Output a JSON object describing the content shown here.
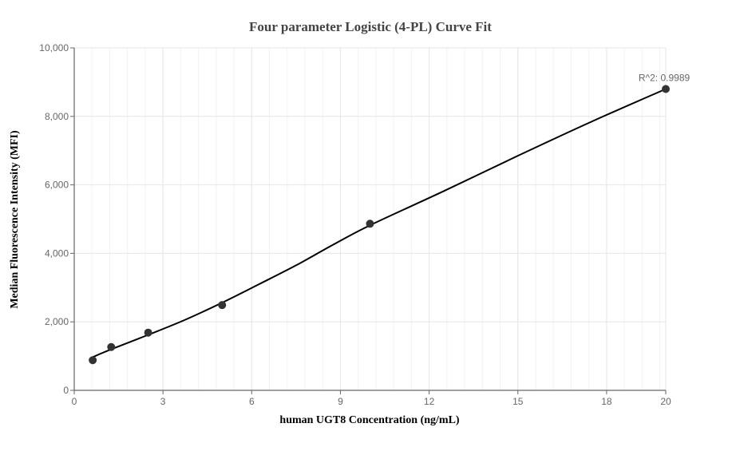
{
  "chart_data": {
    "type": "scatter",
    "title": "Four parameter Logistic (4-PL) Curve Fit",
    "xlabel": "human UGT8 Concentration (ng/mL)",
    "ylabel": "Median Fluorescence Intensity (MFI)",
    "xlim": [
      0,
      20
    ],
    "ylim": [
      0,
      10000
    ],
    "x_ticks": [
      0,
      3,
      6,
      9,
      12,
      15,
      18,
      20
    ],
    "x_tick_labels": [
      "0",
      "3",
      "6",
      "9",
      "12",
      "15",
      "18",
      "20"
    ],
    "y_ticks": [
      0,
      2000,
      4000,
      6000,
      8000,
      10000
    ],
    "y_tick_labels": [
      "0",
      "2,000",
      "4,000",
      "6,000",
      "8,000",
      "10,000"
    ],
    "grid": true,
    "points": {
      "x": [
        0.625,
        1.25,
        2.5,
        5,
        10,
        20
      ],
      "y": [
        880,
        1265,
        1685,
        2490,
        4865,
        8800
      ]
    },
    "fit_curve": {
      "x": [
        0.625,
        1.25,
        2.5,
        3.75,
        5,
        6.25,
        7.5,
        8.75,
        10,
        12.5,
        15,
        17.5,
        20
      ],
      "y": [
        970,
        1200,
        1620,
        2060,
        2560,
        3100,
        3650,
        4250,
        4820,
        5820,
        6850,
        7850,
        8800
      ]
    },
    "annotation": "R^2: 0.9989",
    "colors": {
      "point": "#333333",
      "curve": "#000000",
      "grid": "#e6e6e6",
      "axis": "#666666"
    }
  }
}
